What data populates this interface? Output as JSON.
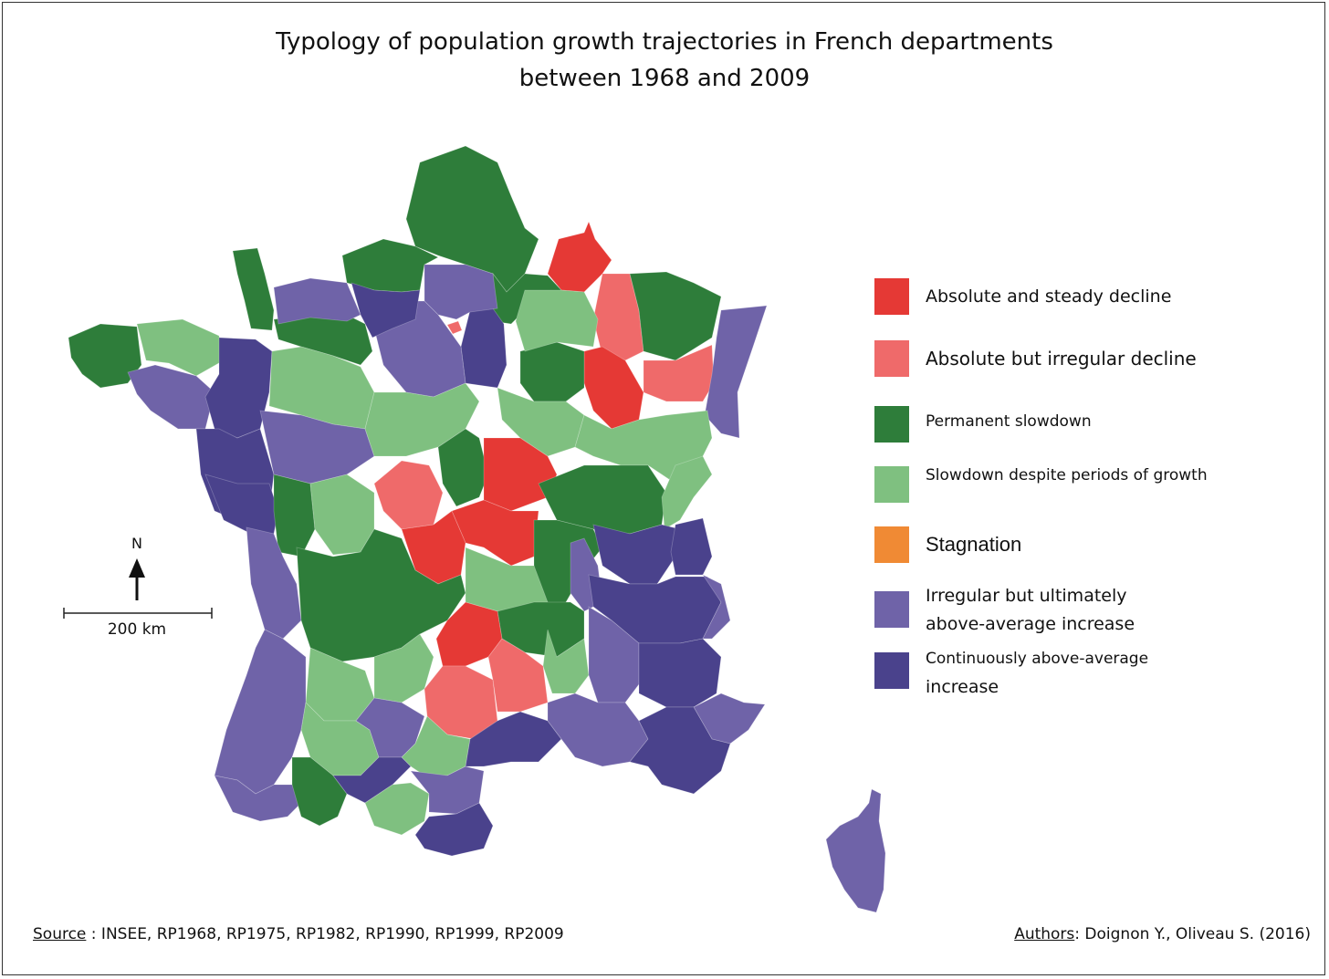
{
  "title": {
    "line1": "Typology of population growth trajectories in French departments",
    "line2": "between 1968 and 2009"
  },
  "colors": {
    "absolute_steady_decline": "#e53935",
    "absolute_irregular_decline": "#ef6a6a",
    "permanent_slowdown": "#2e7d3a",
    "slowdown_despite_growth": "#7fc080",
    "stagnation": "#f08a34",
    "irregular_above_average": "#6f63a8",
    "continuous_above_average": "#4a428c"
  },
  "legend": [
    {
      "key": "absolute_steady_decline",
      "label": "Absolute and steady decline",
      "color": "#e53935"
    },
    {
      "key": "absolute_irregular_decline",
      "label": "Absolute but irregular decline",
      "color": "#ef6a6a"
    },
    {
      "key": "permanent_slowdown",
      "label": "Permanent slowdown",
      "color": "#2e7d3a"
    },
    {
      "key": "slowdown_despite_growth",
      "label": "Slowdown despite periods of growth",
      "color": "#7fc080"
    },
    {
      "key": "stagnation",
      "label": "Stagnation",
      "color": "#f08a34"
    },
    {
      "key": "irregular_above_average",
      "label_line1": "Irregular but ultimately",
      "label_line2": "above-average increase",
      "color": "#6f63a8"
    },
    {
      "key": "continuous_above_average",
      "label_line1": "Continuously above-average",
      "label_line2": "increase",
      "color": "#4a428c"
    }
  ],
  "north_arrow": {
    "label": "N"
  },
  "scale_bar": {
    "label": "200 km"
  },
  "source": {
    "prefix": "Source",
    "text": " : INSEE, RP1968, RP1975, RP1982, RP1990, RP1999, RP2009"
  },
  "authors": {
    "prefix": "Authors",
    "text": ": Doignon Y., Oliveau S. (2016)"
  }
}
